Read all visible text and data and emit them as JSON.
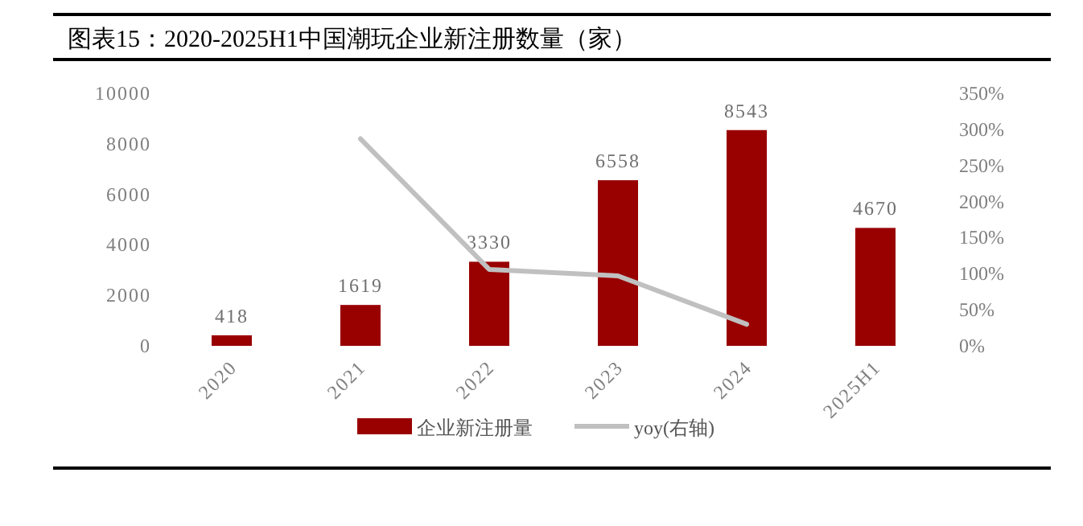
{
  "chart_data": {
    "type": "bar",
    "title": "图表15：2020-2025H1中国潮玩企业新注册数量（家）",
    "categories": [
      "2020",
      "2021",
      "2022",
      "2023",
      "2024",
      "2025H1"
    ],
    "series": [
      {
        "name": "企业新注册量",
        "color": "#990000",
        "values": [
          418,
          1619,
          3330,
          6558,
          8543,
          4670
        ],
        "value_labels": [
          "418",
          "1619",
          "3330",
          "6558",
          "8543",
          "4670"
        ]
      },
      {
        "name": "yoy(右轴)",
        "type": "line",
        "axis": "y2",
        "color": "#c0c0c0",
        "values": [
          null,
          287,
          106,
          97,
          30,
          null
        ]
      }
    ],
    "ylim": [
      0,
      10000
    ],
    "yticks": [
      0,
      2000,
      4000,
      6000,
      8000,
      10000
    ],
    "y2lim": [
      0,
      350
    ],
    "y2ticks": [
      {
        "value": 0,
        "label": "0%"
      },
      {
        "value": 50,
        "label": "50%"
      },
      {
        "value": 100,
        "label": "100%"
      },
      {
        "value": 150,
        "label": "150%"
      },
      {
        "value": 200,
        "label": "200%"
      },
      {
        "value": 250,
        "label": "250%"
      },
      {
        "value": 300,
        "label": "300%"
      },
      {
        "value": 350,
        "label": "350%"
      }
    ],
    "legend": "bottom",
    "grid": false,
    "marker": "none",
    "line_style": "solid"
  }
}
